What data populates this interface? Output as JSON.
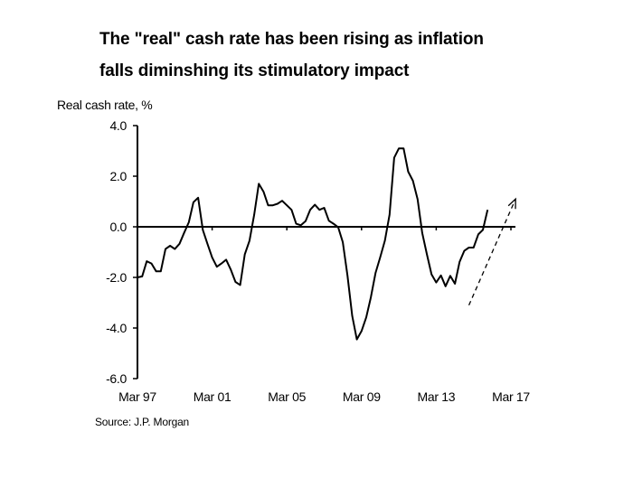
{
  "chart_data": {
    "type": "line",
    "title": "The \"real\" cash rate has been rising as inflation falls diminshing its stimulatory impact",
    "title_lines": [
      "The \"real\" cash rate has been rising as inflation",
      "falls diminshing its stimulatory impact"
    ],
    "ylabel": "Real cash rate, %",
    "xlabel": "",
    "source": "Source: J.P. Morgan",
    "ylim": [
      -6.0,
      4.0
    ],
    "yticks": [
      "4.0",
      "2.0",
      "0.0",
      "-2.0",
      "-4.0",
      "-6.0"
    ],
    "ytick_values": [
      4,
      2,
      0,
      -2,
      -4,
      -6
    ],
    "xlim": [
      "Mar 97",
      "Mar 17"
    ],
    "xticks": [
      "Mar 97",
      "Mar 01",
      "Mar 05",
      "Mar 09",
      "Mar 13",
      "Mar 17"
    ],
    "grid": false,
    "series": [
      {
        "start": "Mar 97",
        "frequency": "quarterly",
        "color": "#000000",
        "values": [
          -2.0,
          -1.96,
          -1.36,
          -1.45,
          -1.76,
          -1.76,
          -0.88,
          -0.75,
          -0.88,
          -0.67,
          -0.24,
          0.18,
          0.97,
          1.15,
          -0.12,
          -0.67,
          -1.21,
          -1.58,
          -1.45,
          -1.3,
          -1.7,
          -2.18,
          -2.3,
          -1.09,
          -0.55,
          0.48,
          1.7,
          1.39,
          0.85,
          0.85,
          0.91,
          1.03,
          0.85,
          0.67,
          0.12,
          0.06,
          0.22,
          0.67,
          0.87,
          0.67,
          0.75,
          0.24,
          0.12,
          -0.02,
          -0.61,
          -1.94,
          -3.52,
          -4.45,
          -4.12,
          -3.58,
          -2.79,
          -1.82,
          -1.21,
          -0.55,
          0.48,
          2.73,
          3.1,
          3.1,
          2.18,
          1.82,
          1.09,
          -0.24,
          -1.09,
          -1.88,
          -2.2,
          -1.92,
          -2.35,
          -1.94,
          -2.25,
          -1.39,
          -0.95,
          -0.82,
          -0.82,
          -0.3,
          -0.12,
          0.67
        ]
      }
    ],
    "annotations": [
      {
        "type": "dashed-arrow",
        "from": {
          "x": "Dec 14",
          "y": -3.1
        },
        "to": {
          "x": "Jun 17",
          "y": 1.1
        }
      }
    ]
  }
}
